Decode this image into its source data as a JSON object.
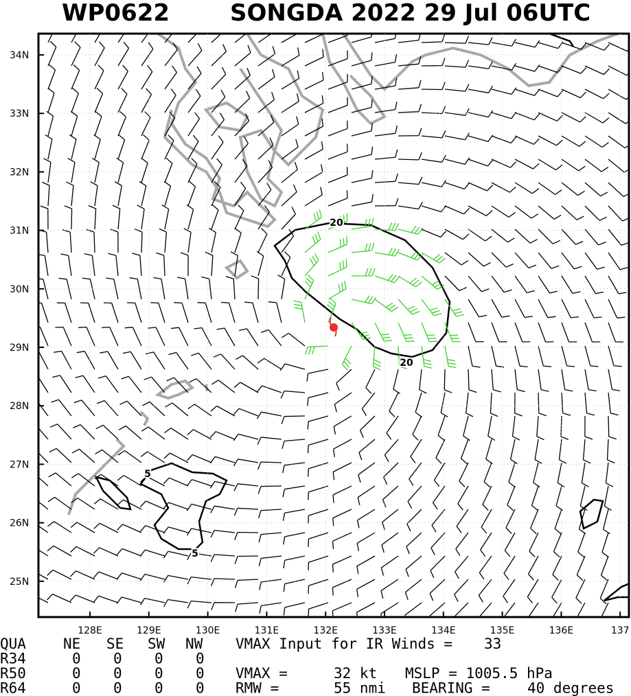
{
  "header": {
    "id": "WP0622",
    "title": "SONGDA 2022 29 Jul 06UTC"
  },
  "map": {
    "lat_labels": [
      "34N",
      "33N",
      "32N",
      "31N",
      "30N",
      "29N",
      "28N",
      "27N",
      "26N",
      "25N"
    ],
    "lon_labels": [
      "128E",
      "129E",
      "130E",
      "131E",
      "132E",
      "133E",
      "134E",
      "135E",
      "136E",
      "137"
    ],
    "contour_labels": [
      "20",
      "20",
      "5",
      "5"
    ]
  },
  "table": {
    "rows": [
      [
        "QUA",
        "NE",
        "SE",
        "SW",
        "NW",
        "VMAX Input for IR Winds =",
        "33"
      ],
      [
        "R34",
        "0",
        "0",
        "0",
        "0"
      ],
      [
        "R50",
        "0",
        "0",
        "0",
        "0",
        "VMAX =",
        "32 kt",
        "MSLP = 1005.5 hPa"
      ],
      [
        "R64",
        "0",
        "0",
        "0",
        "0",
        "RMW =",
        "55 nmi",
        "BEARING =",
        "40 degrees"
      ]
    ]
  }
}
